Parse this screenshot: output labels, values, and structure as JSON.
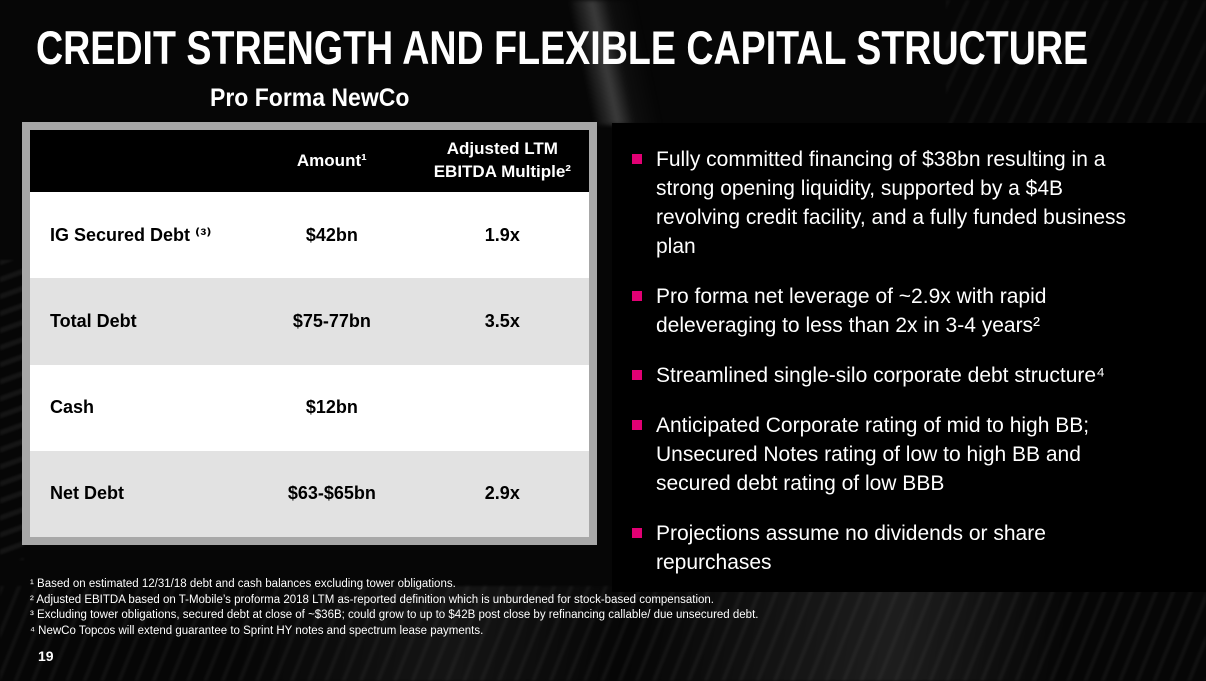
{
  "colors": {
    "magenta": "#E20074",
    "row-gray": "#E2E2E2",
    "table-border": "#A8A8A8",
    "panel-black": "#000000",
    "slide-bg": "#060606",
    "text-white": "#FFFFFF",
    "text-black": "#000000"
  },
  "slide": {
    "title": "CREDIT STRENGTH AND FLEXIBLE CAPITAL STRUCTURE",
    "subtitle": "Pro Forma NewCo",
    "page_number": "19"
  },
  "table": {
    "headers": {
      "label": "",
      "amount": "Amount¹",
      "multiple": "Adjusted LTM EBITDA Multiple²"
    },
    "rows": [
      {
        "label": "IG Secured Debt ⁽³⁾",
        "amount": "$42bn",
        "multiple": "1.9x"
      },
      {
        "label": "Total Debt",
        "amount": "$75-77bn",
        "multiple": "3.5x"
      },
      {
        "label": "Cash",
        "amount": "$12bn",
        "multiple": ""
      },
      {
        "label": "Net Debt",
        "amount": "$63-$65bn",
        "multiple": "2.9x"
      }
    ]
  },
  "bullets": [
    "Fully committed financing of $38bn resulting in a strong opening liquidity, supported by a $4B revolving credit facility, and a fully funded business plan",
    "Pro forma net leverage of ~2.9x with rapid deleveraging to less than 2x in 3-4 years²",
    "Streamlined single-silo corporate debt structure⁴",
    "Anticipated Corporate rating of mid to high BB; Unsecured Notes rating of low to high BB and secured debt rating of low BBB",
    "Projections assume no dividends or share repurchases"
  ],
  "footnotes": [
    "¹ Based on estimated 12/31/18 debt and cash balances excluding tower obligations.",
    "² Adjusted EBITDA based on T-Mobile’s proforma 2018 LTM as-reported definition which is unburdened for stock-based compensation.",
    "³ Excluding tower obligations, secured debt at close of ~$36B; could grow to up to $42B post close by refinancing callable/ due unsecured debt.",
    "⁴ NewCo Topcos will extend guarantee to Sprint HY notes and spectrum lease payments."
  ]
}
